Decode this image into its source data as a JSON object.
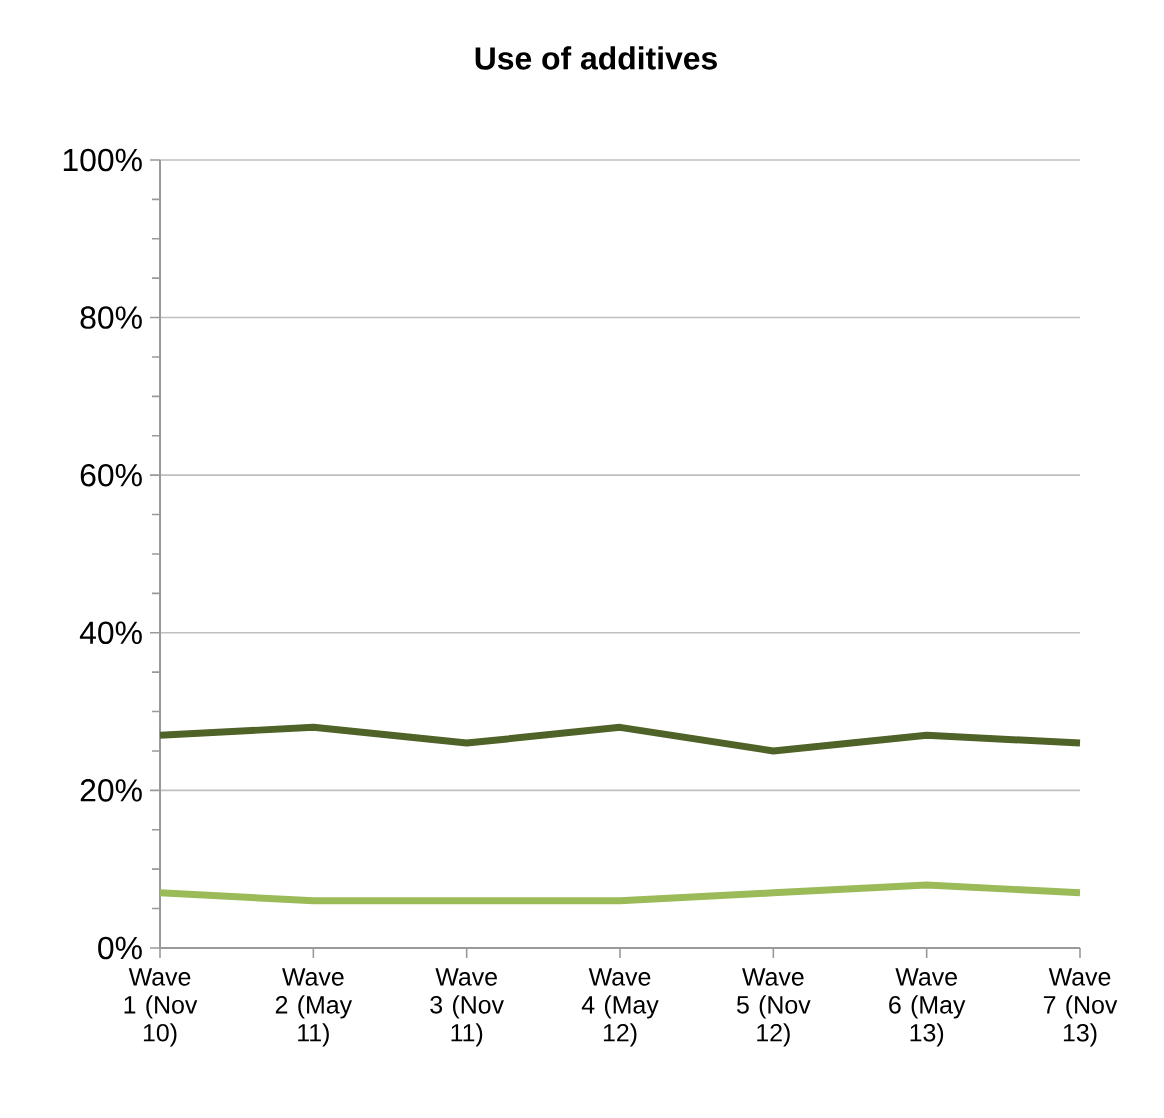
{
  "chart_data": {
    "type": "line",
    "title": "Use of additives",
    "categories": [
      "Wave 1 (Nov 10)",
      "Wave 2 (May 11)",
      "Wave 3 (Nov 11)",
      "Wave 4 (May 12)",
      "Wave 5 (Nov 12)",
      "Wave 6 (May 13)",
      "Wave 7 (Nov 13)"
    ],
    "series": [
      {
        "color": "#4f6228",
        "values": [
          27,
          28,
          26,
          28,
          25,
          27,
          26
        ]
      },
      {
        "color": "#9bbb59",
        "values": [
          7,
          6,
          6,
          6,
          7,
          8,
          7
        ]
      }
    ],
    "ylim": [
      0,
      100
    ],
    "yticks": [
      {
        "value": 0,
        "label": "0%"
      },
      {
        "value": 5,
        "label": null
      },
      {
        "value": 10,
        "label": null
      },
      {
        "value": 15,
        "label": null
      },
      {
        "value": 20,
        "label": "20%"
      },
      {
        "value": 25,
        "label": null
      },
      {
        "value": 30,
        "label": null
      },
      {
        "value": 35,
        "label": null
      },
      {
        "value": 40,
        "label": "40%"
      },
      {
        "value": 45,
        "label": null
      },
      {
        "value": 50,
        "label": null
      },
      {
        "value": 55,
        "label": null
      },
      {
        "value": 60,
        "label": "60%"
      },
      {
        "value": 65,
        "label": null
      },
      {
        "value": 70,
        "label": null
      },
      {
        "value": 75,
        "label": null
      },
      {
        "value": 80,
        "label": "80%"
      },
      {
        "value": 85,
        "label": null
      },
      {
        "value": 90,
        "label": null
      },
      {
        "value": 95,
        "label": null
      },
      {
        "value": 100,
        "label": "100%"
      }
    ],
    "grid": "y",
    "marker": "none",
    "line_style": "solid"
  }
}
